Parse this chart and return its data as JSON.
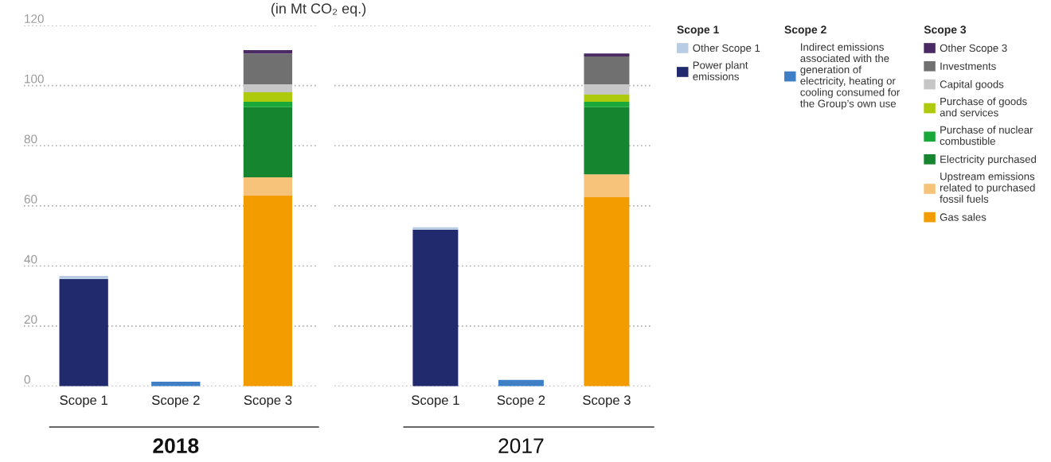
{
  "chart_data": [
    {
      "type": "bar",
      "title": "2018",
      "ylabel": "(in Mt CO₂ eq.)",
      "categories": [
        "Scope 1",
        "Scope 2",
        "Scope 3"
      ],
      "stacked": true,
      "ylim": [
        0,
        120
      ],
      "yticks": [
        0,
        20,
        40,
        60,
        80,
        100,
        120
      ],
      "grid": "y",
      "legend": "right",
      "series": [
        {
          "name": "Power plant\nemissions",
          "color": "#222a6e",
          "values": [
            35.7,
            null,
            null
          ]
        },
        {
          "name": "Other Scope 1",
          "color": "#b8cce4",
          "values": [
            1.0,
            null,
            null
          ]
        },
        {
          "name": "Indirect emissions\nassociated with the\ngeneration of\nelectricity, heating or\ncooling consumed for\nthe Group’s own use",
          "color": "#3f7fc6",
          "values": [
            null,
            1.5,
            null
          ]
        },
        {
          "name": "Gas sales",
          "color": "#f39c00",
          "values": [
            null,
            null,
            63.4
          ]
        },
        {
          "name": "Upstream emissions\nrelated to purchased\nfossil fuels",
          "color": "#f7c27a",
          "values": [
            null,
            null,
            6.1
          ]
        },
        {
          "name": "Electricity purchased",
          "color": "#15852f",
          "values": [
            null,
            null,
            23.3
          ]
        },
        {
          "name": "Purchase of nuclear\ncombustible",
          "color": "#1aa83a",
          "values": [
            null,
            null,
            1.8
          ]
        },
        {
          "name": "Purchase of goods\nand services",
          "color": "#aeca0c",
          "values": [
            null,
            null,
            3.2
          ]
        },
        {
          "name": "Capital goods",
          "color": "#c6c6c6",
          "values": [
            null,
            null,
            2.6
          ]
        },
        {
          "name": "Investments",
          "color": "#707070",
          "values": [
            null,
            null,
            10.3
          ]
        },
        {
          "name": "Other Scope 3",
          "color": "#4b2a63",
          "values": [
            null,
            null,
            1.1
          ]
        }
      ]
    },
    {
      "type": "bar",
      "title": "2017",
      "categories": [
        "Scope 1",
        "Scope 2",
        "Scope 3"
      ],
      "stacked": true,
      "ylim": [
        0,
        120
      ],
      "yticks": [
        0,
        20,
        40,
        60,
        80,
        100,
        120
      ],
      "grid": "y",
      "tick_labels": "x",
      "series": [
        {
          "color": "#222a6e",
          "values": [
            52.1,
            null,
            null
          ]
        },
        {
          "color": "#b8cce4",
          "values": [
            0.8,
            null,
            null
          ]
        },
        {
          "color": "#3f7fc6",
          "values": [
            null,
            2.1,
            null
          ]
        },
        {
          "color": "#f39c00",
          "values": [
            null,
            null,
            62.9
          ]
        },
        {
          "color": "#f7c27a",
          "values": [
            null,
            null,
            7.6
          ]
        },
        {
          "color": "#15852f",
          "values": [
            null,
            null,
            22.3
          ]
        },
        {
          "color": "#1aa83a",
          "values": [
            null,
            null,
            1.8
          ]
        },
        {
          "color": "#aeca0c",
          "values": [
            null,
            null,
            2.4
          ]
        },
        {
          "color": "#c6c6c6",
          "values": [
            null,
            null,
            3.4
          ]
        },
        {
          "color": "#707070",
          "values": [
            null,
            null,
            9.3
          ]
        },
        {
          "color": "#4b2a63",
          "values": [
            null,
            null,
            1.0
          ]
        }
      ]
    }
  ]
}
